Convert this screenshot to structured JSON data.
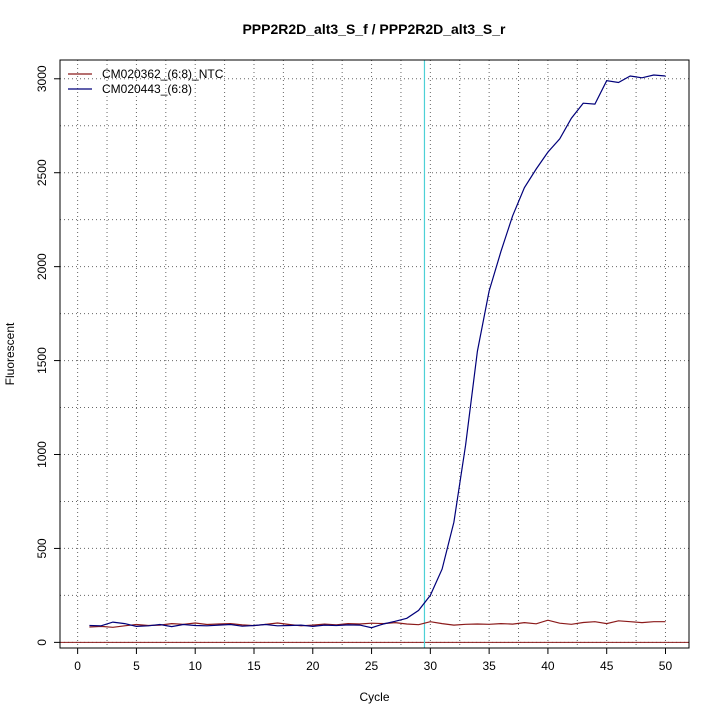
{
  "chart_data": {
    "type": "line",
    "title": "PPP2R2D_alt3_S_f / PPP2R2D_alt3_S_r",
    "xlabel": "Cycle",
    "ylabel": "Fluorescent",
    "xlim": [
      -1.5,
      52
    ],
    "ylim": [
      -30,
      3100
    ],
    "xticks": [
      0,
      5,
      10,
      15,
      20,
      25,
      30,
      35,
      40,
      45,
      50
    ],
    "yticks": [
      0,
      500,
      1000,
      1500,
      2000,
      2500,
      3000
    ],
    "grid": true,
    "legend_position": "top-left",
    "x": [
      1,
      2,
      3,
      4,
      5,
      6,
      7,
      8,
      9,
      10,
      11,
      12,
      13,
      14,
      15,
      16,
      17,
      18,
      19,
      20,
      21,
      22,
      23,
      24,
      25,
      26,
      27,
      28,
      29,
      30,
      31,
      32,
      33,
      34,
      35,
      36,
      37,
      38,
      39,
      40,
      41,
      42,
      43,
      44,
      45,
      46,
      47,
      48,
      49,
      50
    ],
    "series": [
      {
        "name": "CM020362_(6:8)_NTC",
        "color": "#8b1a1a",
        "values": [
          82,
          85,
          80,
          88,
          95,
          90,
          92,
          100,
          96,
          103,
          95,
          98,
          100,
          93,
          89,
          96,
          103,
          95,
          88,
          92,
          97,
          93,
          100,
          98,
          102,
          100,
          105,
          98,
          94,
          110,
          100,
          92,
          96,
          98,
          96,
          100,
          97,
          105,
          99,
          118,
          102,
          96,
          106,
          110,
          100,
          115,
          110,
          105,
          110,
          110
        ]
      },
      {
        "name": "CM020443_(6:8)",
        "color": "#00007a",
        "values": [
          90,
          88,
          108,
          100,
          85,
          88,
          95,
          84,
          95,
          90,
          88,
          92,
          95,
          86,
          90,
          95,
          88,
          90,
          92,
          85,
          92,
          90,
          93,
          92,
          78,
          98,
          112,
          128,
          170,
          250,
          390,
          640,
          1050,
          1550,
          1870,
          2080,
          2270,
          2420,
          2520,
          2610,
          2680,
          2790,
          2870,
          2865,
          2990,
          2980,
          3015,
          3005,
          3020,
          3015
        ]
      }
    ],
    "vlines": [
      {
        "x": 29.5,
        "color": "#4dd0d6"
      }
    ],
    "hlines": [
      {
        "y": 0,
        "color": "#8b1a1a"
      }
    ]
  }
}
